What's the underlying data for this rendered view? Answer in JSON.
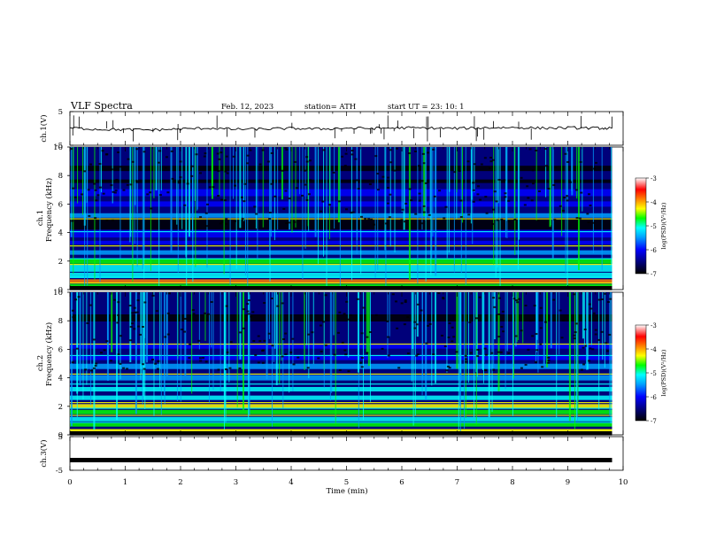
{
  "header": {
    "title": "VLF  Spectra",
    "date": "Feb. 12, 2023",
    "station": "station= ATH",
    "start": "start  UT  =   23: 10: 1"
  },
  "colors": {
    "background": "#000000",
    "colormap": [
      "#000000",
      "#00007a",
      "#0000ff",
      "#00a0ff",
      "#00ffff",
      "#00ff00",
      "#ffff00",
      "#ff8000",
      "#ff0000",
      "#ffffff"
    ]
  },
  "chart_data": [
    {
      "type": "line",
      "panel": "ch1-waveform",
      "ylabel": "ch.1(V)",
      "ylim": [
        -5,
        5
      ],
      "yticks": [
        "5",
        "-5"
      ],
      "xlim": [
        0,
        10
      ],
      "x": [
        0,
        0.5,
        1,
        1.5,
        2,
        2.5,
        3,
        3.5,
        4,
        4.5,
        5,
        5.5,
        6,
        6.5,
        7,
        7.5,
        8,
        8.5,
        9,
        9.5,
        9.8
      ],
      "y": [
        0.2,
        -0.3,
        -0.4,
        -0.5,
        -0.2,
        0.1,
        -0.3,
        -0.2,
        0.0,
        -0.2,
        0.1,
        0.0,
        0.2,
        0.1,
        0.0,
        0.2,
        0.3,
        0.1,
        0.2,
        0.1,
        0.0
      ]
    },
    {
      "type": "heatmap",
      "panel": "ch1-spectrogram",
      "ylabel": "ch.1\nFrequency  (kHz)",
      "ylim": [
        0,
        10
      ],
      "yticks": [
        "0",
        "2",
        "4",
        "6",
        "8",
        "10"
      ],
      "xlim": [
        0,
        9.8
      ],
      "colorbar": {
        "label": "log(PSD)(V²/Hz)",
        "range": [
          -7,
          -3
        ],
        "ticks": [
          "-3",
          "-4",
          "-5",
          "-6",
          "-7"
        ]
      }
    },
    {
      "type": "heatmap",
      "panel": "ch2-spectrogram",
      "ylabel": "ch.2\nFrequency  (kHz)",
      "ylim": [
        0,
        10
      ],
      "yticks": [
        "0",
        "2",
        "4",
        "6",
        "8",
        "10"
      ],
      "xlim": [
        0,
        9.8
      ],
      "colorbar": {
        "label": "log(PSD)(V²/Hz)",
        "range": [
          -7,
          -3
        ],
        "ticks": [
          "-3",
          "-4",
          "-5",
          "-6",
          "-7"
        ]
      }
    },
    {
      "type": "line",
      "panel": "ch3-waveform",
      "ylabel": "ch.3(V)",
      "ylim": [
        -5,
        5
      ],
      "yticks": [
        "5",
        "-5"
      ],
      "xlim": [
        0,
        10
      ],
      "x": [
        0,
        9.8
      ],
      "y": [
        -2.2,
        -2.2
      ]
    }
  ],
  "xaxis": {
    "label": "Time  (min)",
    "ticks": [
      "0",
      "1",
      "2",
      "3",
      "4",
      "5",
      "6",
      "7",
      "8",
      "9",
      "10"
    ]
  }
}
